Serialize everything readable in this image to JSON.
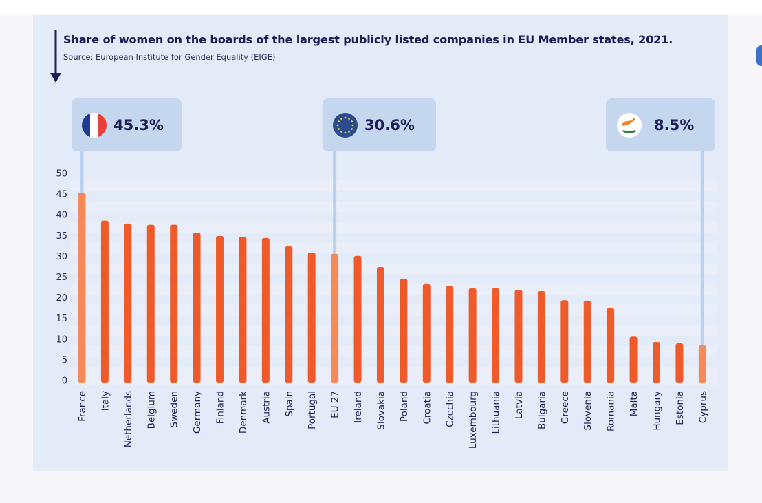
{
  "title": "Share of women on the boards of the largest publicly listed companies in EU Member states, 2021.",
  "source": "Source: European Institute for Gender Equality (EIGE)",
  "icons": {
    "arrow": "arrow-down-icon",
    "france": "france-flag-icon",
    "eu": "eu-flag-icon",
    "cyprus": "cyprus-flag-icon"
  },
  "colors": {
    "bar": "#ef5a2b",
    "highlight_bar": "#f4895a",
    "callout_bg": "#c4d7ef",
    "connector": "#b9d1ef",
    "text": "#1f1d55",
    "card_bg": "#e4ebf8"
  },
  "callouts": [
    {
      "category": "France",
      "label": "45.3%",
      "icon": "france-flag-icon"
    },
    {
      "category": "EU 27",
      "label": "30.6%",
      "icon": "eu-flag-icon"
    },
    {
      "category": "Cyprus",
      "label": "8.5%",
      "icon": "cyprus-flag-icon"
    }
  ],
  "chart_data": {
    "type": "bar",
    "title": "Share of women on the boards of the largest publicly listed companies in EU Member states, 2021.",
    "subtitle": "Source: European Institute for Gender Equality (EIGE)",
    "xlabel": "",
    "ylabel": "",
    "ylim": [
      0,
      50
    ],
    "yticks": [
      0,
      5,
      10,
      15,
      20,
      25,
      30,
      35,
      40,
      45,
      50
    ],
    "grid": true,
    "legend": "none",
    "categories": [
      "France",
      "Italy",
      "Netherlands",
      "Belgium",
      "Sweden",
      "Germany",
      "Finland",
      "Denmark",
      "Austria",
      "Spain",
      "Portugal",
      "EU 27",
      "Ireland",
      "Slovakia",
      "Poland",
      "Croatia",
      "Czechia",
      "Luxembourg",
      "Lithuania",
      "Latvia",
      "Bulgaria",
      "Greece",
      "Slovenia",
      "Romania",
      "Malta",
      "Hungary",
      "Estonia",
      "Cyprus"
    ],
    "values": [
      45.3,
      38.6,
      37.9,
      37.6,
      37.6,
      35.7,
      34.9,
      34.7,
      34.4,
      32.4,
      30.9,
      30.6,
      30.1,
      27.4,
      24.6,
      23.3,
      22.8,
      22.3,
      22.3,
      21.9,
      21.6,
      19.4,
      19.3,
      17.5,
      10.6,
      9.3,
      9.0,
      8.5
    ],
    "highlighted": [
      "France",
      "EU 27",
      "Cyprus"
    ]
  }
}
